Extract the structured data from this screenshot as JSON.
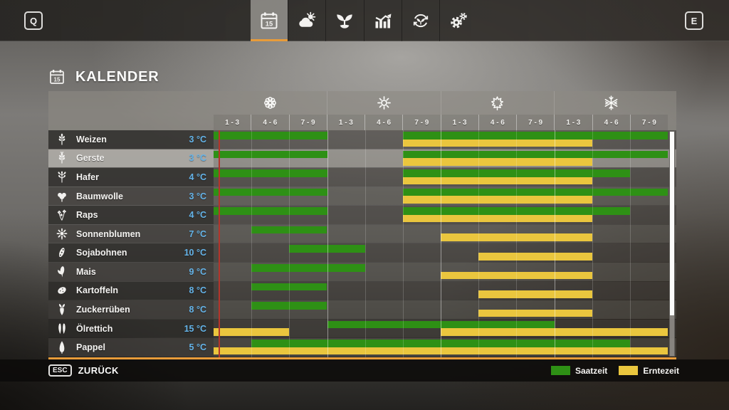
{
  "topbar": {
    "left_key": "Q",
    "right_key": "E",
    "tabs": [
      {
        "id": "calendar",
        "icon": "calendar-icon",
        "day": "15",
        "active": true
      },
      {
        "id": "weather",
        "icon": "weather-icon",
        "active": false
      },
      {
        "id": "crops",
        "icon": "sprout-icon",
        "active": false
      },
      {
        "id": "statistics",
        "icon": "stats-icon",
        "active": false
      },
      {
        "id": "crop-rotation",
        "icon": "rotation-icon",
        "active": false
      },
      {
        "id": "settings",
        "icon": "gears-icon",
        "active": false
      }
    ]
  },
  "header": {
    "title": "KALENDER",
    "title_icon_day": "15"
  },
  "calendar": {
    "seasons": [
      {
        "name": "spring",
        "icon": "flower-icon",
        "periods": [
          "1 - 3",
          "4 - 6",
          "7 - 9"
        ]
      },
      {
        "name": "summer",
        "icon": "sun-icon",
        "periods": [
          "1 - 3",
          "4 - 6",
          "7 - 9"
        ]
      },
      {
        "name": "autumn",
        "icon": "leaf-icon",
        "periods": [
          "1 - 3",
          "4 - 6",
          "7 - 9"
        ]
      },
      {
        "name": "winter",
        "icon": "snowflake-icon",
        "periods": [
          "1 - 3",
          "4 - 6",
          "7 - 9"
        ]
      }
    ],
    "columns": 12,
    "current_time_marker_pct": 1.1,
    "crops": [
      {
        "name": "Weizen",
        "temp": "3 °C",
        "icon": "wheat-icon",
        "highlighted": false,
        "sow": [
          [
            1,
            3
          ],
          [
            6,
            12
          ]
        ],
        "harvest": [
          [
            6,
            10
          ]
        ]
      },
      {
        "name": "Gerste",
        "temp": "3 °C",
        "icon": "barley-icon",
        "highlighted": true,
        "sow": [
          [
            1,
            3
          ],
          [
            6,
            12
          ]
        ],
        "harvest": [
          [
            6,
            10
          ]
        ]
      },
      {
        "name": "Hafer",
        "temp": "4 °C",
        "icon": "oat-icon",
        "highlighted": false,
        "sow": [
          [
            1,
            3
          ],
          [
            6,
            11
          ]
        ],
        "harvest": [
          [
            6,
            10
          ]
        ]
      },
      {
        "name": "Baumwolle",
        "temp": "3 °C",
        "icon": "cotton-icon",
        "highlighted": false,
        "sow": [
          [
            1,
            3
          ],
          [
            6,
            12
          ]
        ],
        "harvest": [
          [
            6,
            10
          ]
        ]
      },
      {
        "name": "Raps",
        "temp": "4 °C",
        "icon": "canola-icon",
        "highlighted": false,
        "sow": [
          [
            1,
            3
          ],
          [
            6,
            11
          ]
        ],
        "harvest": [
          [
            6,
            10
          ]
        ]
      },
      {
        "name": "Sonnenblumen",
        "temp": "7 °C",
        "icon": "sunflower-icon",
        "highlighted": false,
        "sow": [
          [
            2,
            3
          ]
        ],
        "harvest": [
          [
            7,
            10
          ]
        ]
      },
      {
        "name": "Sojabohnen",
        "temp": "10 °C",
        "icon": "soybean-icon",
        "highlighted": false,
        "sow": [
          [
            3,
            4
          ]
        ],
        "harvest": [
          [
            8,
            10
          ]
        ]
      },
      {
        "name": "Mais",
        "temp": "9 °C",
        "icon": "corn-icon",
        "highlighted": false,
        "sow": [
          [
            2,
            4
          ]
        ],
        "harvest": [
          [
            7,
            10
          ]
        ]
      },
      {
        "name": "Kartoffeln",
        "temp": "8 °C",
        "icon": "potato-icon",
        "highlighted": false,
        "sow": [
          [
            2,
            3
          ]
        ],
        "harvest": [
          [
            8,
            10
          ]
        ]
      },
      {
        "name": "Zuckerrüben",
        "temp": "8 °C",
        "icon": "sugarbeet-icon",
        "highlighted": false,
        "sow": [
          [
            2,
            3
          ]
        ],
        "harvest": [
          [
            8,
            10
          ]
        ]
      },
      {
        "name": "Ölrettich",
        "temp": "15 °C",
        "icon": "radish-icon",
        "highlighted": false,
        "sow": [
          [
            4,
            9
          ]
        ],
        "harvest": [
          [
            1,
            2
          ],
          [
            7,
            12
          ]
        ]
      },
      {
        "name": "Pappel",
        "temp": "5 °C",
        "icon": "poplar-icon",
        "highlighted": false,
        "sow": [
          [
            2,
            11
          ]
        ],
        "harvest": [
          [
            1,
            12
          ]
        ]
      }
    ]
  },
  "legend": [
    {
      "label": "Saatzeit",
      "color": "#2e9015"
    },
    {
      "label": "Erntezeit",
      "color": "#eac63e"
    }
  ],
  "footer": {
    "key": "ESC",
    "label": "ZURÜCK"
  },
  "colors": {
    "sow": "#2e9015",
    "harvest": "#eac63e",
    "temperature": "#64b3e8",
    "time_marker": "#b5342a",
    "accent": "#e89c3a"
  }
}
